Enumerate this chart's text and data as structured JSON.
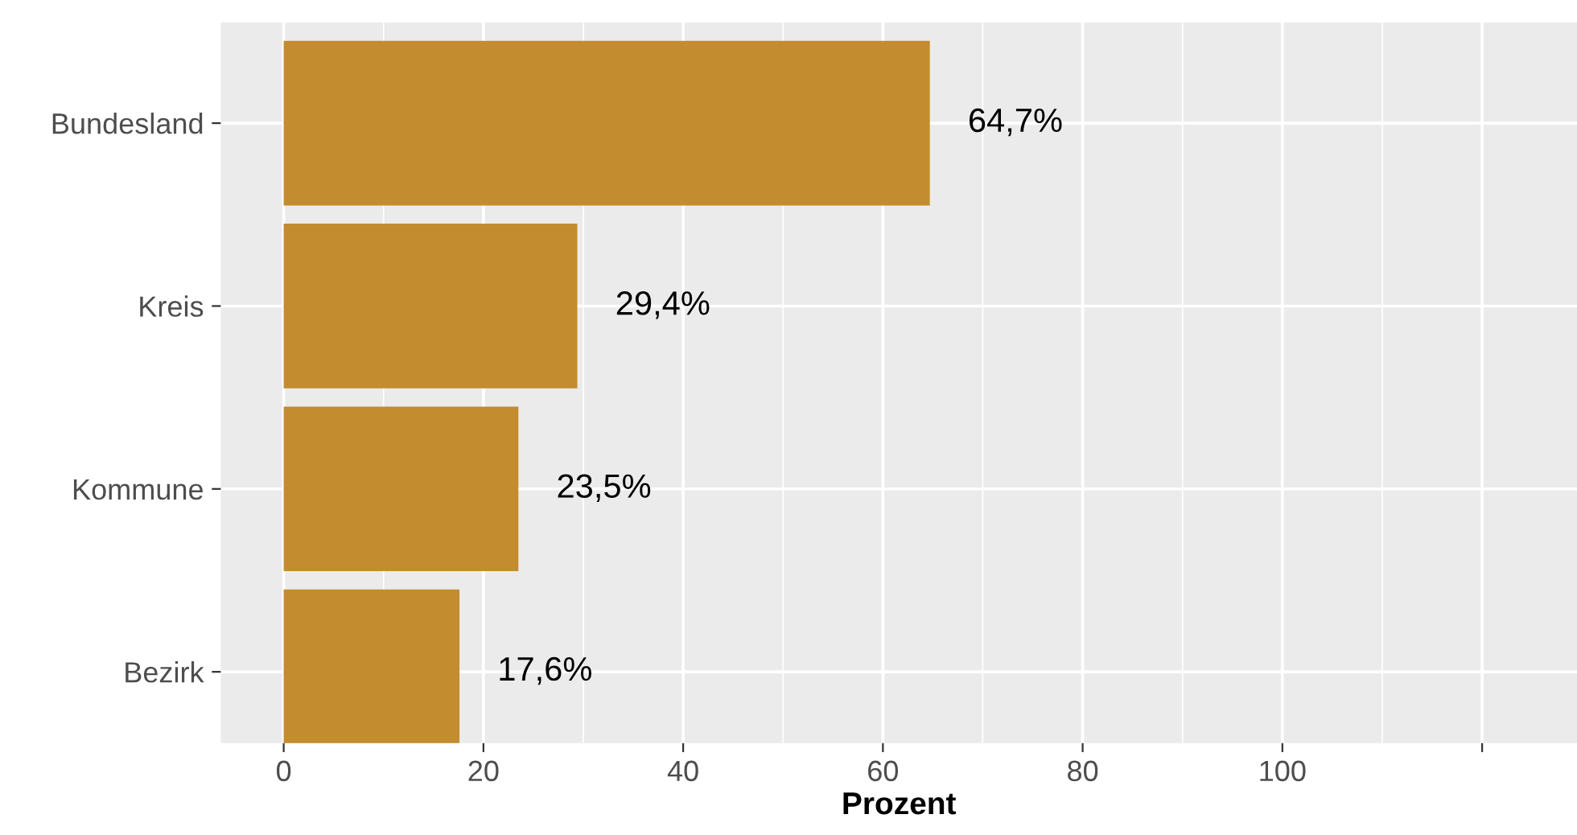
{
  "chart_data": {
    "type": "bar",
    "orientation": "horizontal",
    "xlabel": "Prozent",
    "categories": [
      "Bundesland",
      "Kreis",
      "Kommune",
      "Bezirk"
    ],
    "values": [
      64.7,
      29.4,
      23.5,
      17.6
    ],
    "value_labels": [
      "64,7%",
      "29,4%",
      "23,5%",
      "17,6%"
    ],
    "color": "#c28c2f",
    "xlim": [
      -6.3,
      129.5
    ],
    "xticks": [
      0,
      20,
      40,
      60,
      80,
      100,
      {
        "value": 120,
        "label": null
      }
    ],
    "grid": true
  }
}
